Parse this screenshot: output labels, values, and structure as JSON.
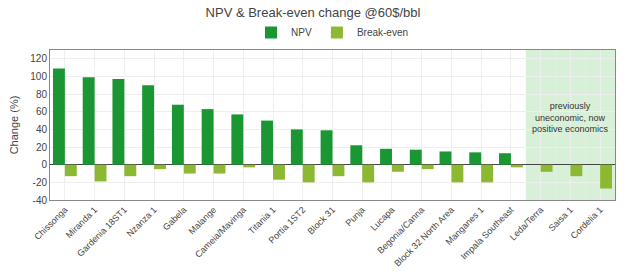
{
  "chart_data": {
    "type": "bar",
    "title": "NPV & Break-even change @60$/bbl",
    "ylabel": "Change (%)",
    "categories": [
      "Chissonga",
      "Miranda 1",
      "Gardenia 18ST1",
      "Nzanza 1",
      "Gabela",
      "Malange",
      "Cameia/Mavinga",
      "Titania 1",
      "Portia 1ST2",
      "Block 31",
      "Punja",
      "Lucapa",
      "Begonia/Canna",
      "Block 32 North Area",
      "Manganes 1",
      "Impala Southeast",
      "Leda/Terra",
      "Saisa 1",
      "Cordelia 1"
    ],
    "series": [
      {
        "name": "NPV",
        "color": "#1a9632",
        "values": [
          109,
          99,
          97,
          90,
          68,
          63,
          57,
          50,
          40,
          39,
          22,
          18,
          17,
          15,
          14,
          13,
          0,
          0,
          0
        ]
      },
      {
        "name": "Break-even",
        "color": "#8db832",
        "values": [
          -13,
          -19,
          -13,
          -5,
          -10,
          -10,
          -3,
          -17,
          -20,
          -13,
          -20,
          -8,
          -5,
          -20,
          -20,
          -3,
          -8,
          -13,
          -27
        ]
      }
    ],
    "ylim": [
      -40,
      130
    ],
    "yticks": [
      -40,
      -20,
      0,
      20,
      40,
      60,
      80,
      100,
      120
    ],
    "grid": true,
    "legend": "top",
    "annotations": [
      {
        "text": "previously\nuneconomic, now\npositive economics",
        "categories": [
          "Leda/Terra",
          "Saisa 1",
          "Cordelia 1"
        ],
        "color": "#c8e8c8"
      }
    ]
  }
}
